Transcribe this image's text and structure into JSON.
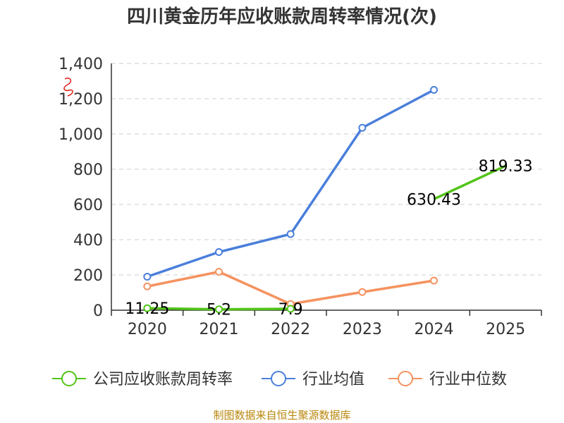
{
  "chart_data": {
    "type": "line",
    "title": "四川黄金历年应收账款周转率情况(次)",
    "categories": [
      "2020",
      "2021",
      "2022",
      "2023",
      "2024",
      "2025"
    ],
    "ylim": [
      0,
      1400
    ],
    "yticks": [
      0,
      200,
      400,
      600,
      800,
      1000,
      1200,
      1400
    ],
    "ytick_labels": [
      "0",
      "200",
      "400",
      "600",
      "800",
      "1,000",
      "1,200",
      "1,400"
    ],
    "grid": true,
    "legend_position": "bottom",
    "series": [
      {
        "name": "公司应收账款周转率",
        "color": "#52c41a",
        "segments": [
          {
            "x": [
              "2020",
              "2021",
              "2022"
            ],
            "values": [
              11.25,
              5.2,
              7.9
            ],
            "labels": [
              "11.25",
              "5.2",
              "7.9"
            ],
            "markers": true
          },
          {
            "x": [
              "2024",
              "2025"
            ],
            "values": [
              630.43,
              819.33
            ],
            "labels": [
              "630.43",
              "819.33"
            ],
            "markers": false
          }
        ]
      },
      {
        "name": "行业均值",
        "color": "#4a7fdb",
        "segments": [
          {
            "x": [
              "2020",
              "2021",
              "2022",
              "2023",
              "2024"
            ],
            "values": [
              190,
              330,
              432,
              1035,
              1250
            ],
            "markers": true
          }
        ]
      },
      {
        "name": "行业中位数",
        "color": "#f5925f",
        "segments": [
          {
            "x": [
              "2020",
              "2021",
              "2022",
              "2023",
              "2024"
            ],
            "values": [
              135,
              218,
              35,
              103,
              168
            ],
            "markers": true
          }
        ]
      }
    ],
    "source": "制图数据来自恒生聚源数据库"
  }
}
